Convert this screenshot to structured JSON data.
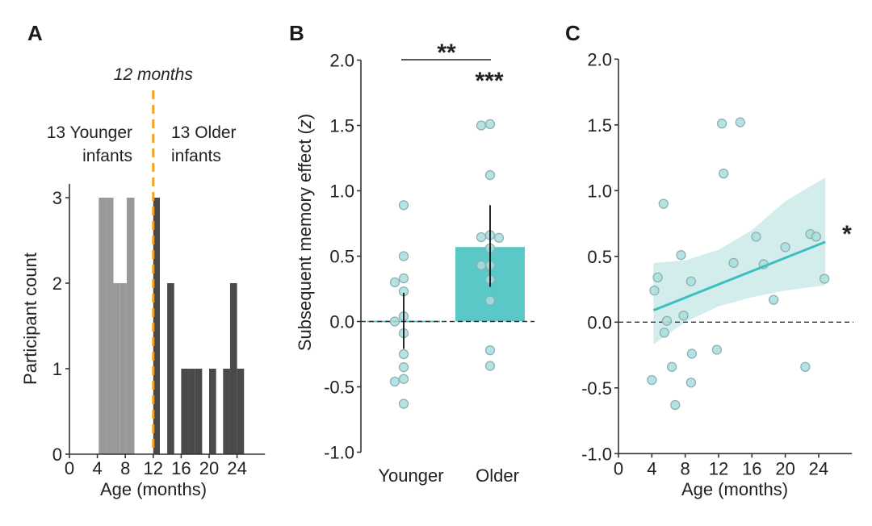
{
  "colors": {
    "younger_bar": "#999999",
    "older_bar": "#4a4a4a",
    "threshold": "#F0A21F",
    "teal": "#5BC8C8",
    "dot_fill": "#A8DEDE",
    "dot_stroke": "#8EB0B0",
    "ci_band": "#CDEBEA",
    "regression_line": "#3CBFBF",
    "text_grey": "#999999",
    "text_dark": "#333333"
  },
  "chart_data": [
    {
      "panel": "A",
      "type": "bar",
      "subtype": "histogram",
      "title": "",
      "xlabel": "Age (months)",
      "ylabel": "Participant count",
      "xlim": [
        0,
        28
      ],
      "ylim": [
        0,
        3.2
      ],
      "xticks": [
        0,
        4,
        8,
        12,
        16,
        20,
        24
      ],
      "yticks": [
        0,
        1,
        2,
        3
      ],
      "grid": false,
      "series": [
        {
          "name": "13 Younger infants",
          "bins": [
            {
              "start": 4.2,
              "end": 5.25,
              "count": 3
            },
            {
              "start": 5.25,
              "end": 6.3,
              "count": 3
            },
            {
              "start": 6.3,
              "end": 7.25,
              "count": 2
            },
            {
              "start": 7.25,
              "end": 8.2,
              "count": 2
            },
            {
              "start": 8.2,
              "end": 9.3,
              "count": 3
            }
          ]
        },
        {
          "name": "13 Older infants",
          "bins": [
            {
              "start": 12.0,
              "end": 12.95,
              "count": 3
            },
            {
              "start": 14.0,
              "end": 15.0,
              "count": 2
            },
            {
              "start": 16.0,
              "end": 17.0,
              "count": 1
            },
            {
              "start": 17.0,
              "end": 18.0,
              "count": 1
            },
            {
              "start": 18.0,
              "end": 19.0,
              "count": 1
            },
            {
              "start": 20.0,
              "end": 21.0,
              "count": 1
            },
            {
              "start": 22.0,
              "end": 23.0,
              "count": 1
            },
            {
              "start": 23.0,
              "end": 24.0,
              "count": 2
            },
            {
              "start": 24.0,
              "end": 25.0,
              "count": 1
            }
          ]
        }
      ],
      "annotations": {
        "threshold_x": 12,
        "threshold_label": "12 months",
        "younger_label": [
          "13 Younger",
          "infants"
        ],
        "older_label": [
          "13 Older",
          "infants"
        ]
      }
    },
    {
      "panel": "B",
      "type": "bar",
      "title": "",
      "xlabel": "",
      "ylabel": "Subsequent memory effect (z)",
      "ylabel_main": "Subsequent memory effect (",
      "ylabel_italic": "z",
      "ylabel_close": ")",
      "ylim": [
        -1.0,
        2.0
      ],
      "yticks": [
        -1.0,
        -0.5,
        0.0,
        0.5,
        1.0,
        1.5,
        2.0
      ],
      "ytick_labels": [
        "-1.0",
        "-0.5",
        "0.0",
        "0.5",
        "1.0",
        "1.5",
        "2.0"
      ],
      "categories": [
        "Younger",
        "Older"
      ],
      "values": [
        0.0,
        0.57
      ],
      "error_bars": [
        [
          -0.21,
          0.22
        ],
        [
          0.265,
          0.89
        ]
      ],
      "points": [
        [
          0.89,
          0.5,
          0.33,
          0.3,
          0.23,
          0.04,
          0.0,
          -0.09,
          -0.25,
          -0.35,
          -0.44,
          -0.46,
          -0.63
        ],
        [
          1.51,
          1.5,
          1.12,
          0.66,
          0.645,
          0.64,
          0.56,
          0.43,
          0.43,
          0.32,
          0.16,
          -0.22,
          -0.34
        ]
      ],
      "reference_line": 0.0,
      "annotations": {
        "comparison_stars": "**",
        "older_vs_zero_stars": "***"
      }
    },
    {
      "panel": "C",
      "type": "scatter",
      "title": "",
      "xlabel": "Age (months)",
      "ylabel": "",
      "xlim": [
        0,
        28
      ],
      "ylim": [
        -1.0,
        2.0
      ],
      "xticks": [
        0,
        4,
        8,
        12,
        16,
        20,
        24
      ],
      "yticks": [
        -1.0,
        -0.5,
        0.0,
        0.5,
        1.0,
        1.5,
        2.0
      ],
      "ytick_labels": [
        "-1.0",
        "-0.5",
        "0.0",
        "0.5",
        "1.0",
        "1.5",
        "2.0"
      ],
      "points": [
        {
          "x": 4.0,
          "y": -0.44
        },
        {
          "x": 4.3,
          "y": 0.24
        },
        {
          "x": 4.7,
          "y": 0.34
        },
        {
          "x": 5.4,
          "y": 0.9
        },
        {
          "x": 5.5,
          "y": -0.08
        },
        {
          "x": 5.8,
          "y": 0.01
        },
        {
          "x": 6.4,
          "y": -0.34
        },
        {
          "x": 6.8,
          "y": -0.63
        },
        {
          "x": 7.5,
          "y": 0.51
        },
        {
          "x": 7.8,
          "y": 0.05
        },
        {
          "x": 8.7,
          "y": 0.31
        },
        {
          "x": 8.8,
          "y": -0.24
        },
        {
          "x": 8.7,
          "y": -0.46
        },
        {
          "x": 11.8,
          "y": -0.21
        },
        {
          "x": 12.4,
          "y": 1.51
        },
        {
          "x": 12.6,
          "y": 1.13
        },
        {
          "x": 13.8,
          "y": 0.45
        },
        {
          "x": 14.6,
          "y": 1.52
        },
        {
          "x": 16.5,
          "y": 0.65
        },
        {
          "x": 17.4,
          "y": 0.44
        },
        {
          "x": 18.6,
          "y": 0.17
        },
        {
          "x": 20.0,
          "y": 0.57
        },
        {
          "x": 22.4,
          "y": -0.34
        },
        {
          "x": 23.0,
          "y": 0.67
        },
        {
          "x": 23.7,
          "y": 0.65
        },
        {
          "x": 24.7,
          "y": 0.33
        }
      ],
      "regression": {
        "x": [
          4.2,
          24.8
        ],
        "y": [
          0.09,
          0.61
        ]
      },
      "confidence_band": {
        "x": [
          4.2,
          8,
          12,
          16,
          20,
          24.8
        ],
        "upper": [
          0.45,
          0.47,
          0.55,
          0.7,
          0.92,
          1.1
        ],
        "lower": [
          -0.17,
          0.0,
          0.12,
          0.19,
          0.24,
          0.28
        ]
      },
      "reference_line": 0.0,
      "annotations": {
        "significance_stars": "*"
      }
    }
  ]
}
